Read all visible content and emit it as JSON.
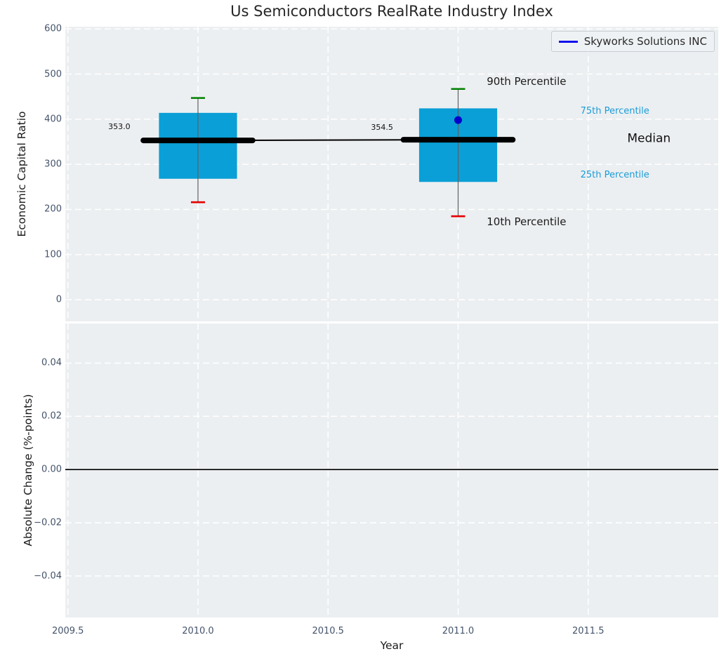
{
  "title": "Us Semiconductors RealRate Industry Index",
  "legend": {
    "label": "Skyworks Solutions INC",
    "line_color": "#1111ee"
  },
  "colors": {
    "plot_bg": "#eceff1",
    "grid": "#ffffff",
    "box_fill": "#0a9fd6",
    "whisker": "#606060",
    "cap_high": "#008000",
    "cap_low": "#e60000",
    "median_line": "#000000",
    "company_dot": "#0000cc",
    "percentile_label": "#1a9cd8",
    "tick_label": "#44536a"
  },
  "chart_data": [
    {
      "type": "boxplot",
      "title": "Us Semiconductors RealRate Industry Index",
      "ylabel": "Economic Capital Ratio",
      "xlabel": "",
      "xlim": [
        2009.49,
        2012.0
      ],
      "ylim": [
        -48,
        605
      ],
      "grid": "dashed-white",
      "legend_position": "upper right",
      "xtick_values": [
        2009.5,
        2010.0,
        2010.5,
        2011.0,
        2011.5
      ],
      "xtick_labels": [
        "2009.5",
        "2010.0",
        "2010.5",
        "2011.0",
        "2011.5"
      ],
      "show_xtick_labels": false,
      "ytick_values": [
        600,
        500,
        400,
        300,
        200,
        100,
        0
      ],
      "ytick_labels": [
        "600",
        "500",
        "400",
        "300",
        "200",
        "100",
        "0"
      ],
      "box_width": 0.3,
      "median_width": 0.42,
      "boxes": [
        {
          "x": 2010,
          "whisker_low": 216,
          "q1": 268,
          "median": 353.0,
          "q3": 414,
          "whisker_high": 447,
          "median_label": "353.0"
        },
        {
          "x": 2011,
          "whisker_low": 185,
          "q1": 261,
          "median": 354.5,
          "q3": 424,
          "whisker_high": 467,
          "median_label": "354.5"
        }
      ],
      "median_line": {
        "x": [
          2010,
          2011
        ],
        "y": [
          353.0,
          354.5
        ]
      },
      "company_points": [
        {
          "x": 2011,
          "y": 398,
          "name": "Skyworks Solutions INC"
        }
      ],
      "annotations": [
        {
          "text": "353.0",
          "x": 2009.74,
          "y": 383,
          "align": "right",
          "size": 11,
          "color": "#111111"
        },
        {
          "text": "354.5",
          "x": 2010.75,
          "y": 381,
          "align": "right",
          "size": 11,
          "color": "#111111"
        },
        {
          "text": "90th Percentile",
          "x": 2011.11,
          "y": 483,
          "align": "left",
          "size": 15,
          "color": "#1a1a1a"
        },
        {
          "text": "10th Percentile",
          "x": 2011.11,
          "y": 172,
          "align": "left",
          "size": 15,
          "color": "#1a1a1a"
        },
        {
          "text": "75th Percentile",
          "x": 2011.47,
          "y": 417,
          "align": "left",
          "size": 13,
          "color": "#1a9cd8"
        },
        {
          "text": "Median",
          "x": 2011.65,
          "y": 356,
          "align": "left",
          "size": 17,
          "color": "#111111"
        },
        {
          "text": "25th Percentile",
          "x": 2011.47,
          "y": 275,
          "align": "left",
          "size": 13,
          "color": "#1a9cd8"
        }
      ]
    },
    {
      "type": "line",
      "ylabel": "Absolute Change (%-points)",
      "xlabel": "Year",
      "xlim": [
        2009.49,
        2012.0
      ],
      "ylim": [
        -0.0556,
        0.0549
      ],
      "grid": "dashed-white",
      "xtick_values": [
        2009.5,
        2010.0,
        2010.5,
        2011.0,
        2011.5
      ],
      "xtick_labels": [
        "2009.5",
        "2010.0",
        "2010.5",
        "2011.0",
        "2011.5"
      ],
      "show_xtick_labels": true,
      "ytick_values": [
        0.04,
        0.02,
        0.0,
        -0.02,
        -0.04
      ],
      "ytick_labels": [
        "0.04",
        "0.02",
        "0.00",
        "−0.02",
        "−0.04"
      ],
      "zero_line": 0.0,
      "series": []
    }
  ]
}
